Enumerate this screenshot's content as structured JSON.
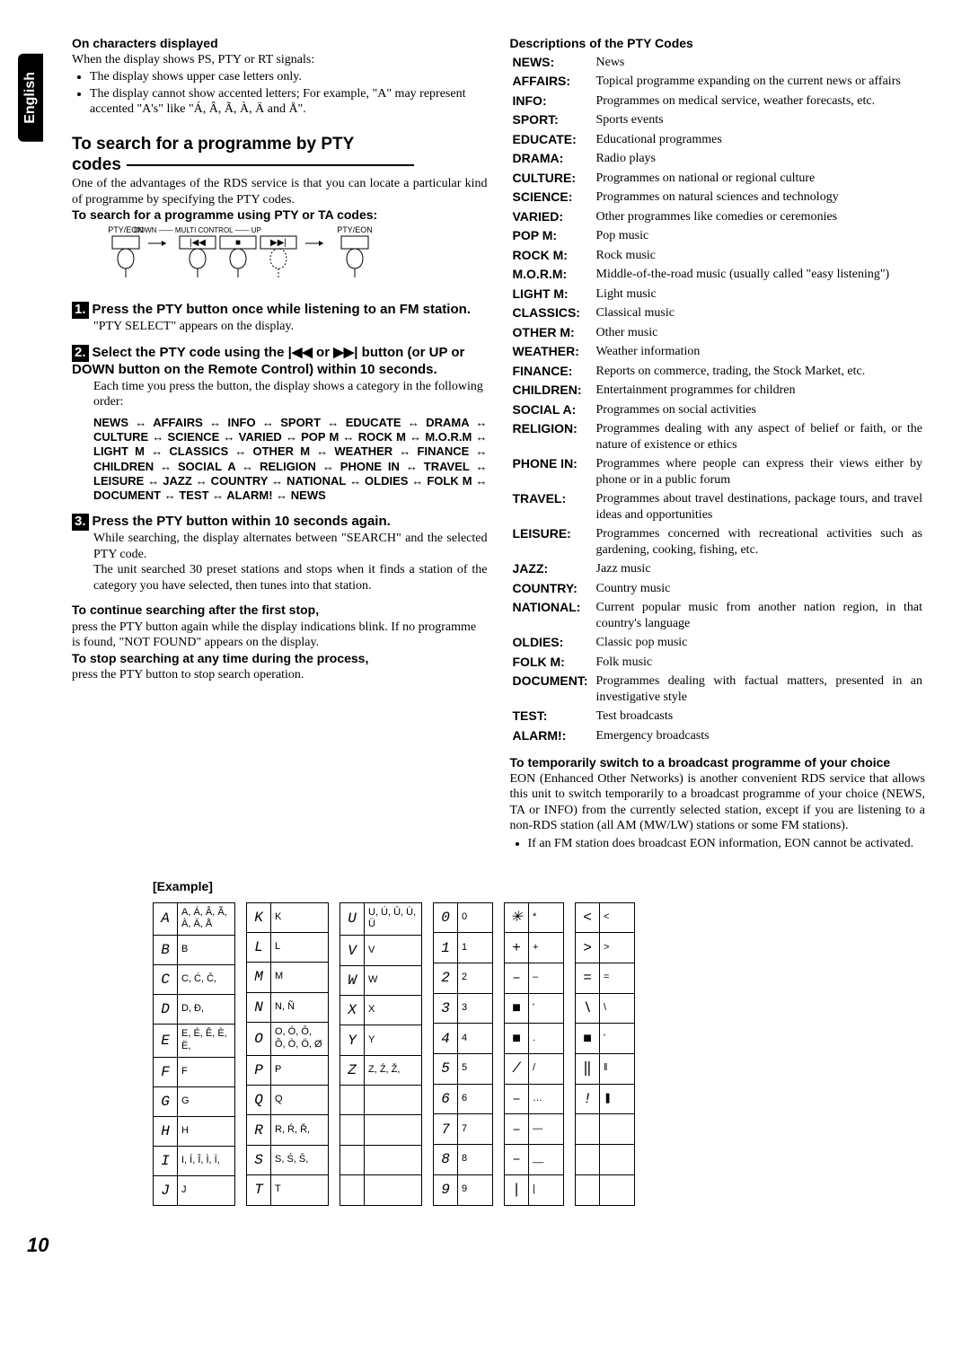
{
  "lang_tab": "English",
  "page_number": "10",
  "left": {
    "chars_heading": "On characters displayed",
    "chars_intro": "When the display shows PS, PTY or RT signals:",
    "bullets": [
      "The display shows upper case letters only.",
      "The display cannot show accented letters; For example, \"A\" may represent accented \"A's\" like \"Á, Â, Ã, À, Ä and Å\"."
    ],
    "search_title_l1": "To search for a programme by PTY",
    "search_title_l2": "codes",
    "search_intro": "One of the advantages of the RDS service is that you can locate a particular kind of programme by specifying the PTY codes.",
    "search_sub": "To search for a programme using PTY or TA codes:",
    "flow": {
      "pty_eon": "PTY/EON",
      "down": "DOWN",
      "multi": "MULTI CONTROL",
      "up": "UP"
    },
    "step1_num": "1.",
    "step1_title": "Press the PTY button once while listening to an FM station.",
    "step1_body": "\"PTY SELECT\" appears on the display.",
    "step2_num": "2.",
    "step2_title": "Select the PTY code using the |◀◀ or ▶▶| button (or UP or DOWN button on the Remote Control) within 10 seconds.",
    "step2_body": "Each time you press the button, the display shows a category in the following order:",
    "pty_list": "NEWS ↔ AFFAIRS ↔ INFO ↔ SPORT ↔ EDUCATE ↔ DRAMA ↔ CULTURE ↔ SCIENCE ↔ VARIED ↔ POP M ↔ ROCK M ↔ M.O.R.M ↔ LIGHT M ↔ CLASSICS ↔ OTHER M ↔ WEATHER ↔ FINANCE ↔ CHILDREN ↔ SOCIAL A ↔ RELIGION ↔ PHONE IN ↔ TRAVEL ↔ LEISURE ↔ JAZZ ↔ COUNTRY ↔ NATIONAL ↔ OLDIES ↔ FOLK M ↔ DOCUMENT ↔ TEST ↔ ALARM! ↔ NEWS",
    "step3_num": "3.",
    "step3_title": "Press the PTY button within 10 seconds again.",
    "step3_body": "While searching, the display alternates between \"SEARCH\" and the selected PTY code.\nThe unit searched 30 preset stations and stops when it finds a station of the category you have selected, then tunes into that station.",
    "continue_head": "To continue searching after the first stop,",
    "continue_body": "press the PTY button again while the display indications blink. If no programme is found, \"NOT FOUND\" appears on the display.",
    "stop_head": "To stop searching at any time during the process,",
    "stop_body": "press the PTY button to stop search operation."
  },
  "right": {
    "desc_heading": "Descriptions of the PTY Codes",
    "codes": [
      [
        "NEWS:",
        "News"
      ],
      [
        "AFFAIRS:",
        "Topical programme expanding on the current news or affairs"
      ],
      [
        "INFO:",
        "Programmes on medical service, weather forecasts, etc."
      ],
      [
        "SPORT:",
        "Sports events"
      ],
      [
        "EDUCATE:",
        "Educational programmes"
      ],
      [
        "DRAMA:",
        "Radio plays"
      ],
      [
        "CULTURE:",
        "Programmes on national or regional culture"
      ],
      [
        "SCIENCE:",
        "Programmes on natural sciences and technology"
      ],
      [
        "VARIED:",
        "Other programmes like comedies or ceremonies"
      ],
      [
        "POP M:",
        "Pop music"
      ],
      [
        "ROCK M:",
        "Rock music"
      ],
      [
        "M.O.R.M:",
        "Middle-of-the-road music (usually called \"easy listening\")"
      ],
      [
        "LIGHT M:",
        "Light music"
      ],
      [
        "CLASSICS:",
        "Classical music"
      ],
      [
        "OTHER M:",
        "Other music"
      ],
      [
        "WEATHER:",
        "Weather information"
      ],
      [
        "FINANCE:",
        "Reports on commerce, trading, the Stock Market, etc."
      ],
      [
        "CHILDREN:",
        "Entertainment programmes for children"
      ],
      [
        "SOCIAL A:",
        "Programmes on social activities"
      ],
      [
        "RELIGION:",
        "Programmes dealing with any aspect of belief or faith, or the nature of existence or ethics"
      ],
      [
        "PHONE IN:",
        "Programmes where people can express their views either by phone or in a public forum"
      ],
      [
        "TRAVEL:",
        "Programmes about travel destinations, package tours, and travel ideas and opportunities"
      ],
      [
        "LEISURE:",
        "Programmes concerned with recreational activities such as gardening, cooking, fishing, etc."
      ],
      [
        "JAZZ:",
        "Jazz music"
      ],
      [
        "COUNTRY:",
        "Country music"
      ],
      [
        "NATIONAL:",
        "Current popular music from another nation region, in that country's language"
      ],
      [
        "OLDIES:",
        "Classic pop music"
      ],
      [
        "FOLK M:",
        "Folk music"
      ],
      [
        "DOCUMENT:",
        "Programmes dealing with factual matters, presented in an investigative style"
      ],
      [
        "TEST:",
        "Test broadcasts"
      ],
      [
        "ALARM!:",
        "Emergency broadcasts"
      ]
    ],
    "temp_head": "To temporarily switch to a broadcast programme of your choice",
    "temp_body": "EON (Enhanced Other Networks) is another convenient RDS service that allows this unit to switch temporarily to a broadcast programme of your choice (NEWS, TA or INFO) from the currently selected station, except if you are listening to a non-RDS station (all AM (MW/LW) stations or some FM stations).",
    "temp_bullet": "If an FM station does broadcast EON information, EON cannot be activated."
  },
  "example_label": "[Example]",
  "char_table": {
    "cols": [
      [
        [
          "A",
          "A, Á, Â, Ã, À, Ä, Å"
        ],
        [
          "B",
          "B"
        ],
        [
          "C",
          "C, Ć, Č,"
        ],
        [
          "D",
          "D, Đ,"
        ],
        [
          "E",
          "E, É, Ê, È, Ë,"
        ],
        [
          "F",
          "F"
        ],
        [
          "G",
          "G"
        ],
        [
          "H",
          "H"
        ],
        [
          "I",
          "I, Í, Î, Ì, Ï,"
        ],
        [
          "J",
          "J"
        ]
      ],
      [
        [
          "K",
          "K"
        ],
        [
          "L",
          "L"
        ],
        [
          "M",
          "M"
        ],
        [
          "N",
          "N, Ñ"
        ],
        [
          "O",
          "O, Ó, Ô, Õ, Ò, Ö, Ø"
        ],
        [
          "P",
          "P"
        ],
        [
          "Q",
          "Q"
        ],
        [
          "R",
          "R, Ŕ, Ř,"
        ],
        [
          "S",
          "S, Ś, Š,"
        ],
        [
          "T",
          "T"
        ]
      ],
      [
        [
          "U",
          "U, Ú, Û, Ù, Ü"
        ],
        [
          "V",
          "V"
        ],
        [
          "W",
          "W"
        ],
        [
          "X",
          "X"
        ],
        [
          "Y",
          "Y"
        ],
        [
          "Z",
          "Z, Ź, Ž,"
        ],
        [
          "",
          ""
        ],
        [
          "",
          ""
        ],
        [
          "",
          ""
        ],
        [
          "",
          ""
        ]
      ],
      [
        [
          "0",
          "0"
        ],
        [
          "1",
          "1"
        ],
        [
          "2",
          "2"
        ],
        [
          "3",
          "3"
        ],
        [
          "4",
          "4"
        ],
        [
          "5",
          "5"
        ],
        [
          "6",
          "6"
        ],
        [
          "7",
          "7"
        ],
        [
          "8",
          "8"
        ],
        [
          "9",
          "9"
        ]
      ],
      [
        [
          "✳",
          "*"
        ],
        [
          "+",
          "+"
        ],
        [
          "–",
          "–"
        ],
        [
          "■",
          "'"
        ],
        [
          "■",
          "."
        ],
        [
          "/",
          "/"
        ],
        [
          "–",
          "…"
        ],
        [
          "–",
          "—"
        ],
        [
          "–",
          "__"
        ],
        [
          "|",
          "|"
        ]
      ],
      [
        [
          "<",
          "<"
        ],
        [
          ">",
          ">"
        ],
        [
          "=",
          "="
        ],
        [
          "\\",
          "\\"
        ],
        [
          "■",
          "'"
        ],
        [
          "‖",
          "‖"
        ],
        [
          "!",
          "❚"
        ],
        [
          "",
          ""
        ],
        [
          "",
          ""
        ],
        [
          "",
          ""
        ]
      ]
    ]
  }
}
